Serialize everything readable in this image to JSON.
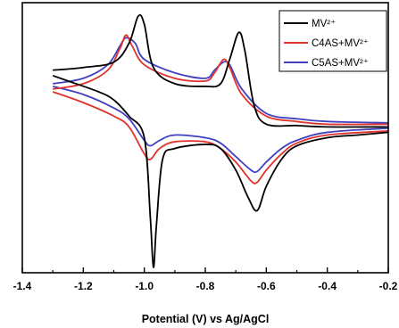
{
  "chart_data": {
    "type": "line",
    "title": "",
    "xlabel": "Potential (V) vs Ag/AgCl",
    "ylabel": "",
    "xlim": [
      -1.4,
      -0.2
    ],
    "ylim": [
      0,
      100
    ],
    "xticks": [
      -1.4,
      -1.2,
      -1.0,
      -0.8,
      -0.6,
      -0.4,
      -0.2
    ],
    "xtick_labels": [
      "-1.4",
      "-1.2",
      "-1.0",
      "-0.8",
      "-0.6",
      "-0.4",
      "-0.2"
    ],
    "y_ticks_labeled": false,
    "grid": false,
    "legend": {
      "placement": "top-right",
      "box": true
    },
    "series": [
      {
        "name": "MV²⁺",
        "color": "#000000",
        "upper": [
          [
            -1.3,
            75
          ],
          [
            -1.2,
            76
          ],
          [
            -1.1,
            78
          ],
          [
            -1.05,
            85
          ],
          [
            -1.02,
            95
          ],
          [
            -1.0,
            92
          ],
          [
            -0.97,
            76
          ],
          [
            -0.9,
            70
          ],
          [
            -0.8,
            69
          ],
          [
            -0.75,
            70
          ],
          [
            -0.72,
            79
          ],
          [
            -0.69,
            89
          ],
          [
            -0.67,
            82
          ],
          [
            -0.64,
            62
          ],
          [
            -0.6,
            55
          ],
          [
            -0.5,
            54.5
          ],
          [
            -0.4,
            54
          ],
          [
            -0.2,
            54
          ]
        ],
        "lower": [
          [
            -1.3,
            73
          ],
          [
            -1.25,
            71
          ],
          [
            -1.15,
            67
          ],
          [
            -1.1,
            64
          ],
          [
            -1.05,
            58
          ],
          [
            -1.0,
            50
          ],
          [
            -0.98,
            20
          ],
          [
            -0.97,
            2
          ],
          [
            -0.96,
            18
          ],
          [
            -0.94,
            42
          ],
          [
            -0.9,
            46
          ],
          [
            -0.8,
            47.5
          ],
          [
            -0.75,
            46
          ],
          [
            -0.7,
            38
          ],
          [
            -0.66,
            28
          ],
          [
            -0.63,
            23
          ],
          [
            -0.6,
            32
          ],
          [
            -0.55,
            42
          ],
          [
            -0.5,
            47
          ],
          [
            -0.4,
            50
          ],
          [
            -0.3,
            51
          ],
          [
            -0.2,
            52
          ]
        ]
      },
      {
        "name": "C4AS+MV²⁺",
        "color": "#e0322c",
        "upper": [
          [
            -1.3,
            68
          ],
          [
            -1.2,
            70
          ],
          [
            -1.12,
            75
          ],
          [
            -1.08,
            83
          ],
          [
            -1.06,
            88
          ],
          [
            -1.04,
            84
          ],
          [
            -1.0,
            77
          ],
          [
            -0.9,
            72
          ],
          [
            -0.8,
            71
          ],
          [
            -0.77,
            74
          ],
          [
            -0.74,
            79
          ],
          [
            -0.72,
            76
          ],
          [
            -0.68,
            66
          ],
          [
            -0.6,
            58
          ],
          [
            -0.5,
            56
          ],
          [
            -0.4,
            55
          ],
          [
            -0.2,
            55
          ]
        ],
        "lower": [
          [
            -1.3,
            67
          ],
          [
            -1.2,
            63
          ],
          [
            -1.1,
            58
          ],
          [
            -1.05,
            54
          ],
          [
            -1.0,
            44
          ],
          [
            -0.98,
            42
          ],
          [
            -0.95,
            46
          ],
          [
            -0.9,
            48.5
          ],
          [
            -0.8,
            48.5
          ],
          [
            -0.75,
            46
          ],
          [
            -0.7,
            41
          ],
          [
            -0.65,
            34
          ],
          [
            -0.63,
            33.5
          ],
          [
            -0.6,
            38
          ],
          [
            -0.55,
            44
          ],
          [
            -0.5,
            48
          ],
          [
            -0.4,
            51
          ],
          [
            -0.2,
            52.5
          ]
        ]
      },
      {
        "name": "C5AS+MV²⁺",
        "color": "#4040c0",
        "upper": [
          [
            -1.3,
            70
          ],
          [
            -1.2,
            72
          ],
          [
            -1.12,
            77
          ],
          [
            -1.08,
            84
          ],
          [
            -1.06,
            87
          ],
          [
            -1.03,
            85
          ],
          [
            -1.0,
            79
          ],
          [
            -0.9,
            74
          ],
          [
            -0.8,
            72
          ],
          [
            -0.77,
            75
          ],
          [
            -0.74,
            78
          ],
          [
            -0.72,
            77
          ],
          [
            -0.68,
            68
          ],
          [
            -0.6,
            59
          ],
          [
            -0.5,
            57
          ],
          [
            -0.4,
            56
          ],
          [
            -0.2,
            55.5
          ]
        ],
        "lower": [
          [
            -1.3,
            69
          ],
          [
            -1.2,
            66
          ],
          [
            -1.1,
            61
          ],
          [
            -1.05,
            57
          ],
          [
            -1.0,
            49
          ],
          [
            -0.98,
            47
          ],
          [
            -0.95,
            49
          ],
          [
            -0.9,
            51
          ],
          [
            -0.8,
            50
          ],
          [
            -0.75,
            48
          ],
          [
            -0.7,
            43
          ],
          [
            -0.65,
            38
          ],
          [
            -0.63,
            37.5
          ],
          [
            -0.6,
            41
          ],
          [
            -0.55,
            46
          ],
          [
            -0.5,
            49
          ],
          [
            -0.4,
            52
          ],
          [
            -0.2,
            53.5
          ]
        ]
      }
    ]
  }
}
